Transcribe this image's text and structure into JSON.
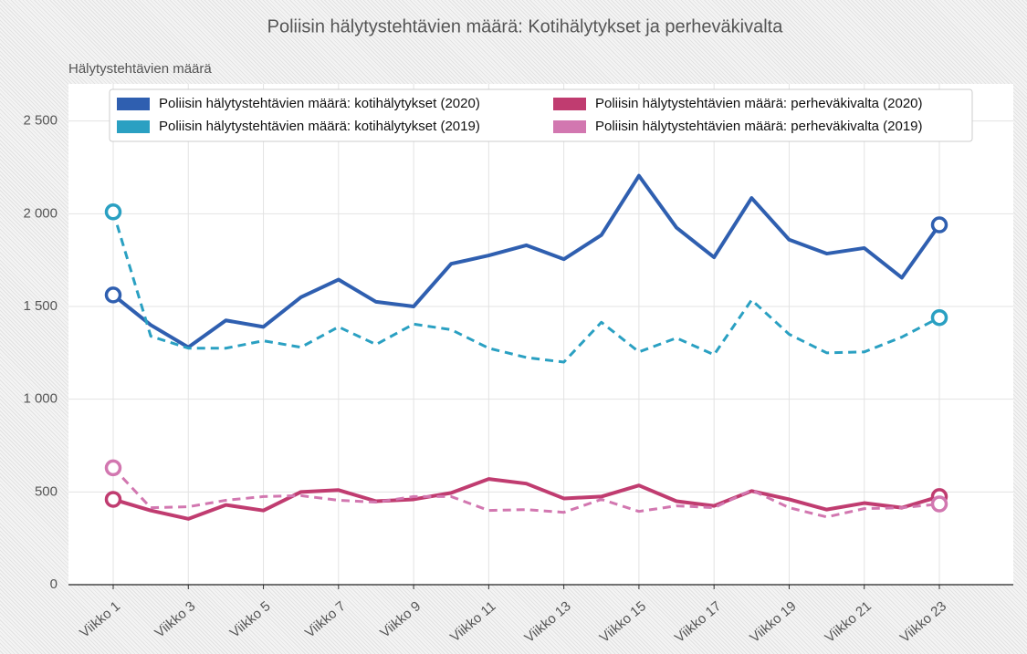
{
  "chart_data": {
    "type": "line",
    "title": "Poliisin hälytystehtävien määrä: Kotihälytykset ja perheväkivalta",
    "y_label": "Hälytystehtävien määrä",
    "categories": [
      "Viikko 1",
      null,
      "Viikko 3",
      null,
      "Viikko 5",
      null,
      "Viikko 7",
      null,
      "Viikko 9",
      null,
      "Viikko 11",
      null,
      "Viikko 13",
      null,
      "Viikko 15",
      null,
      "Viikko 17",
      null,
      "Viikko 19",
      null,
      "Viikko 21",
      null,
      "Viikko 23"
    ],
    "series": [
      {
        "name": "Poliisin hälytystehtävien määrä: kotihälytykset (2020)",
        "color": "#2f5fb0",
        "dashed": false,
        "values": [
          1562,
          1400,
          1280,
          1425,
          1390,
          1550,
          1645,
          1525,
          1500,
          1730,
          1775,
          1830,
          1755,
          1885,
          2205,
          1925,
          1765,
          2085,
          1860,
          1785,
          1815,
          1655,
          1940
        ]
      },
      {
        "name": "Poliisin hälytystehtävien määrä: kotihälytykset (2019)",
        "color": "#2aa0c2",
        "dashed": true,
        "values": [
          2010,
          1340,
          1275,
          1275,
          1315,
          1280,
          1390,
          1295,
          1405,
          1375,
          1275,
          1225,
          1200,
          1415,
          1255,
          1330,
          1240,
          1535,
          1350,
          1250,
          1255,
          1335,
          1440
        ]
      },
      {
        "name": "Poliisin hälytystehtävien määrä: perheväkivalta (2020)",
        "color": "#c03c70",
        "dashed": false,
        "values": [
          460,
          400,
          355,
          430,
          400,
          500,
          510,
          450,
          460,
          495,
          570,
          545,
          465,
          475,
          535,
          450,
          425,
          505,
          460,
          405,
          440,
          415,
          475
        ]
      },
      {
        "name": "Poliisin hälytystehtävien määrä: perheväkivalta (2019)",
        "color": "#d277b0",
        "dashed": true,
        "values": [
          630,
          415,
          420,
          455,
          475,
          480,
          455,
          445,
          475,
          475,
          400,
          405,
          390,
          460,
          395,
          425,
          415,
          510,
          415,
          365,
          410,
          415,
          435
        ]
      }
    ],
    "ylim": [
      0,
      2700
    ],
    "yticks": [
      0,
      500,
      {
        "value": 1000,
        "label": "1 000"
      },
      {
        "value": 1500,
        "label": "1 500"
      },
      {
        "value": 2000,
        "label": "2 000"
      },
      {
        "value": 2500,
        "label": "2 500"
      }
    ],
    "grid": true,
    "end_markers": true,
    "legend": "top"
  }
}
